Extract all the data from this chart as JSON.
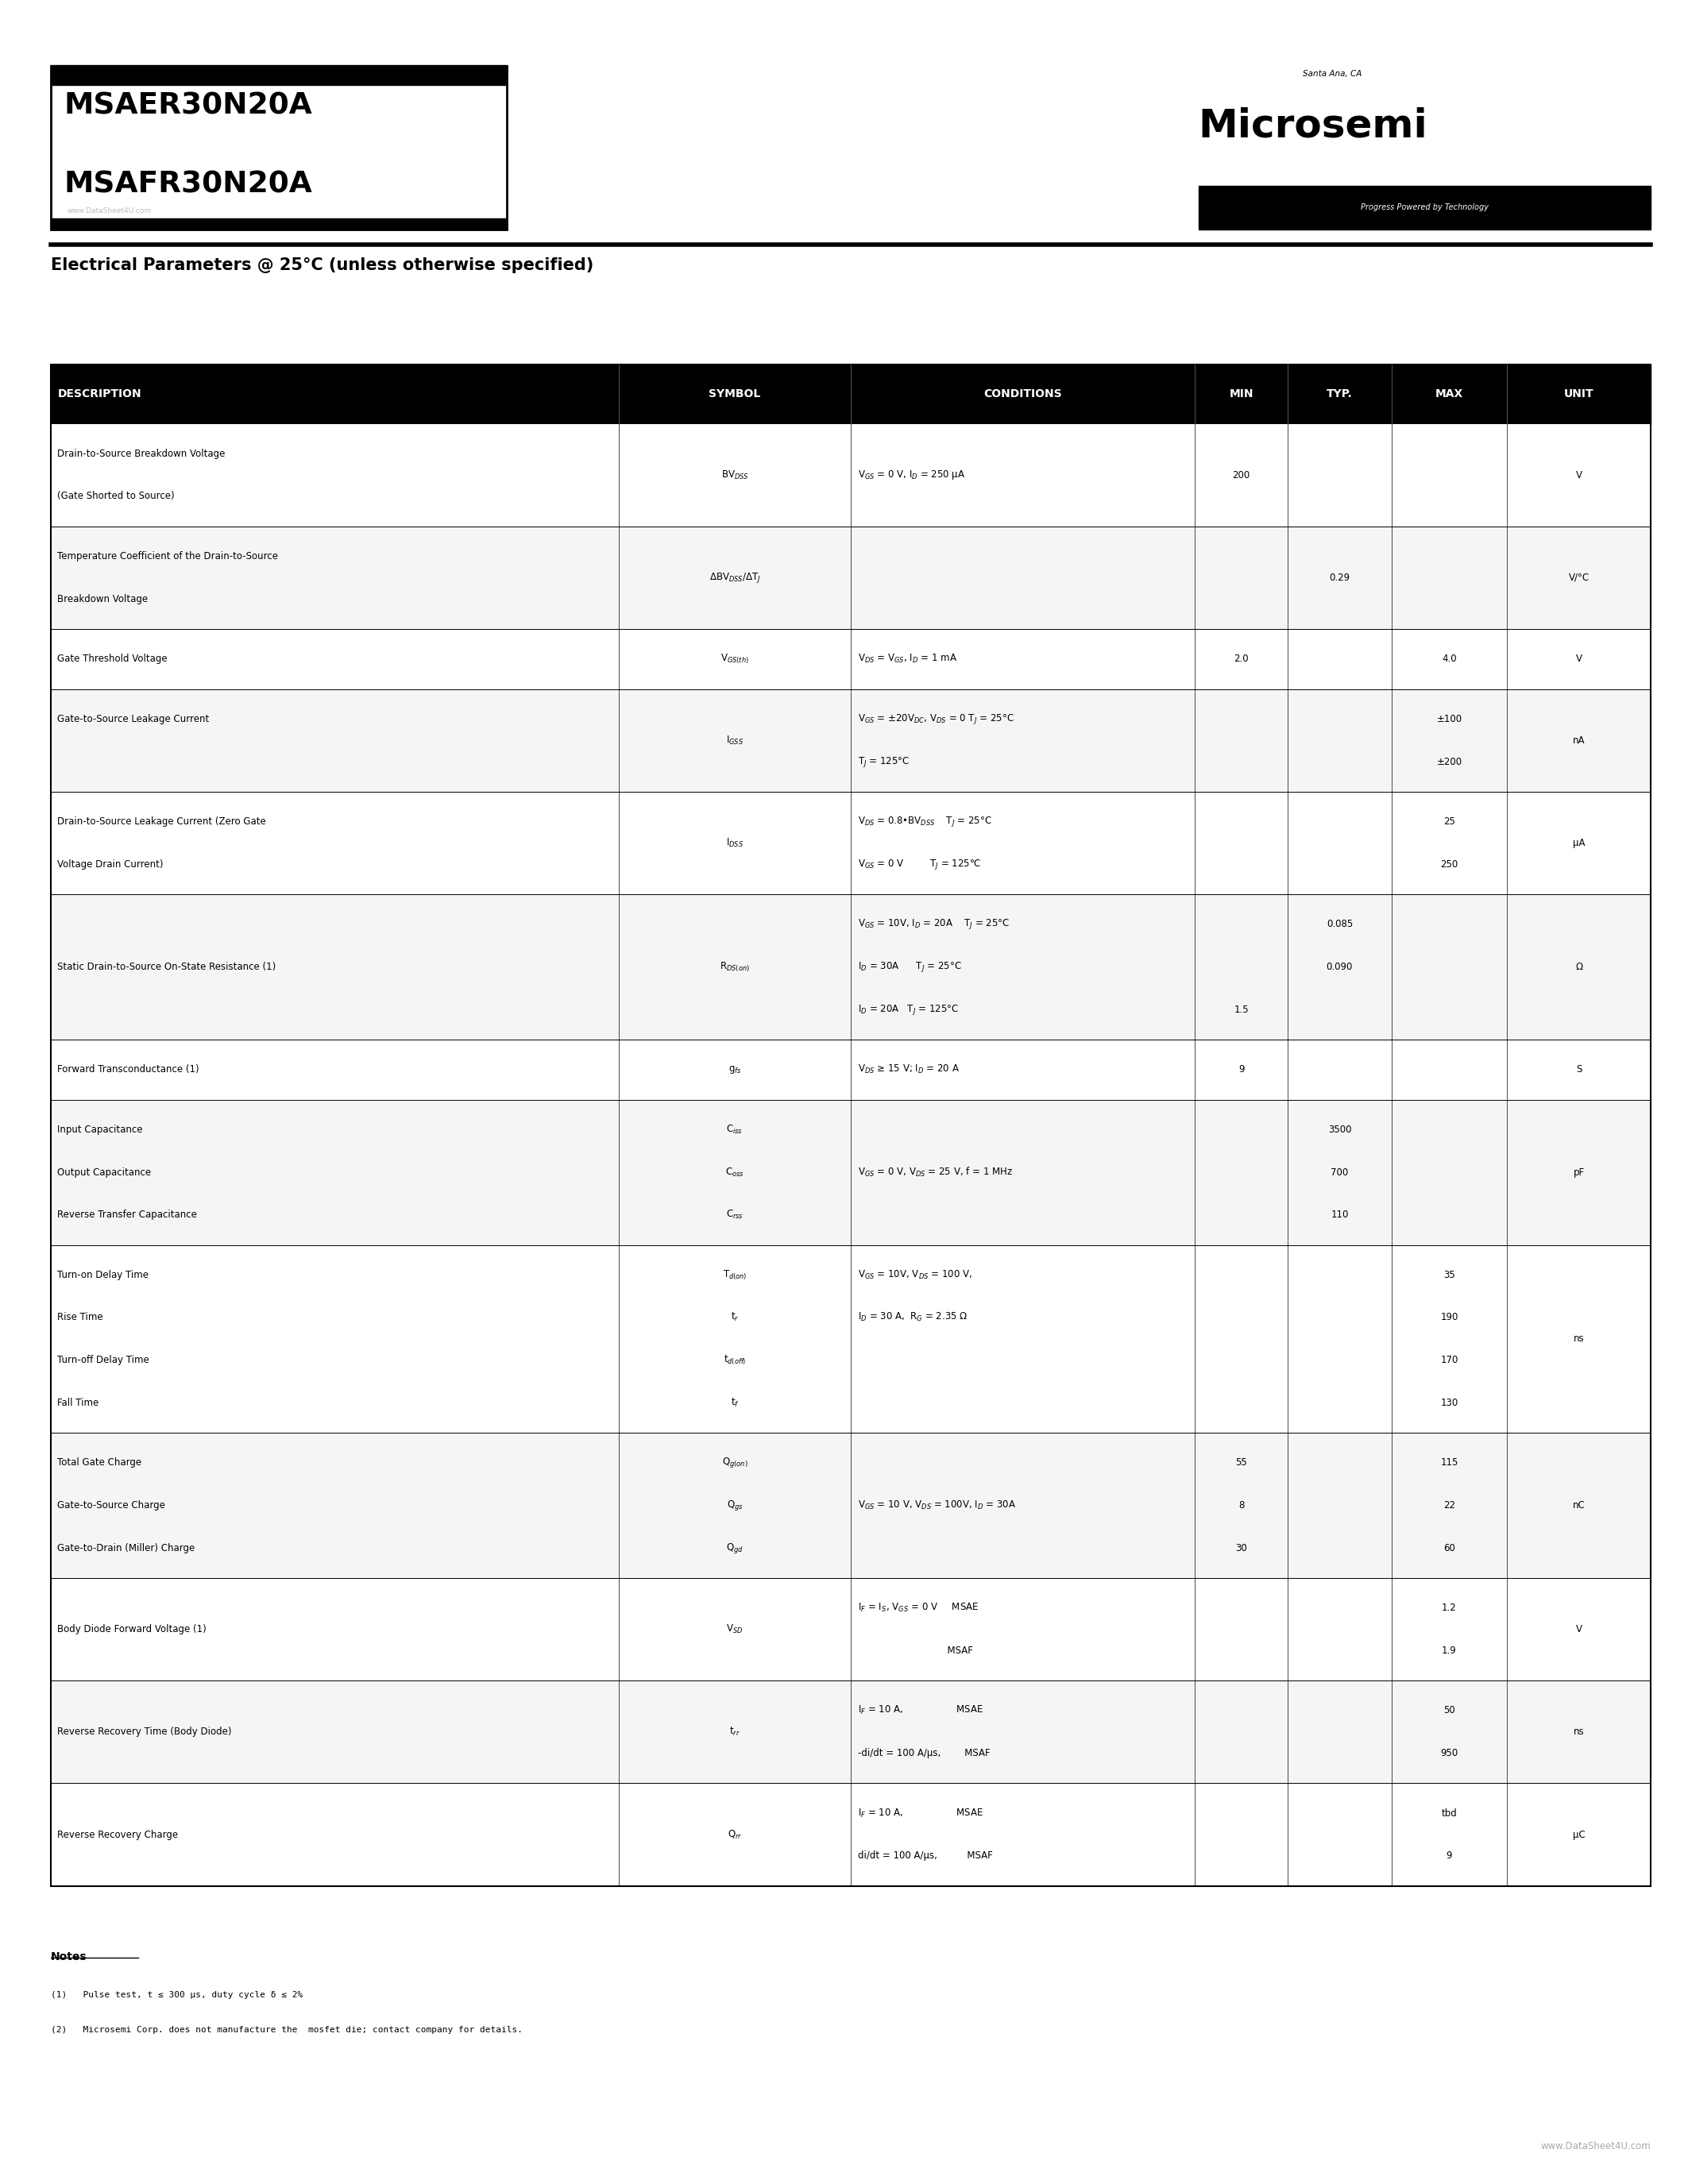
{
  "title_line1": "MSAER30N20A",
  "title_line2": "MSAFR30N20A",
  "watermark": "www.DataSheet4U.com",
  "section_title": "Electrical Parameters @ 25°C (unless otherwise specified)",
  "microsemi_location": "Santa Ana, CA",
  "microsemi_tagline": "Progress Powered by Technology",
  "header_cols": [
    "DESCRIPTION",
    "SYMBOL",
    "CONDITIONS",
    "MIN",
    "TYP.",
    "MAX",
    "UNIT"
  ],
  "notes_title": "Notes",
  "notes": [
    "(1)   Pulse test, t ≤ 300 μs, duty cycle δ ≤ 2%",
    "(2)   Microsemi Corp. does not manufacture the  mosfet die; contact company for details."
  ],
  "footer_watermark": "www.DataSheet4U.com"
}
